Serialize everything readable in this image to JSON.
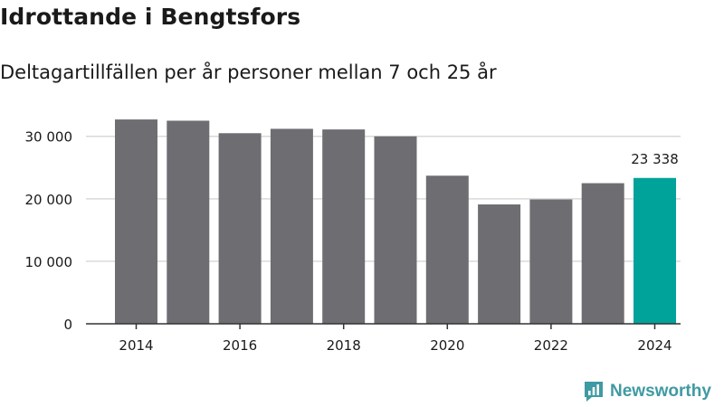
{
  "header": {
    "title": "Idrottande i Bengtsfors",
    "subtitle": "Deltagartillfällen per år personer mellan 7 och 25 år"
  },
  "brand": {
    "name": "Newsworthy",
    "icon": "newsworthy-logo-icon"
  },
  "colors": {
    "bar": "#6e6d72",
    "highlight": "#00a39a",
    "grid": "#d9d9d9",
    "axis": "#333333",
    "text": "#1a1a1a",
    "brand": "#3f9aa3"
  },
  "chart_data": {
    "type": "bar",
    "title": "Idrottande i Bengtsfors",
    "subtitle": "Deltagartillfällen per år personer mellan 7 och 25 år",
    "xlabel": "",
    "ylabel": "",
    "categories": [
      "2014",
      "2015",
      "2016",
      "2017",
      "2018",
      "2019",
      "2020",
      "2021",
      "2022",
      "2023",
      "2024"
    ],
    "values": [
      32700,
      32500,
      30500,
      31200,
      31100,
      30000,
      23700,
      19100,
      19900,
      22500,
      23338
    ],
    "highlight_index": 10,
    "highlight_label": "23 338",
    "ylim": [
      0,
      33000
    ],
    "yticks": [
      0,
      10000,
      20000,
      30000
    ],
    "ytick_labels": [
      "0",
      "10 000",
      "20 000",
      "30 000"
    ],
    "xtick_labels": [
      "2014",
      "",
      "2016",
      "",
      "2018",
      "",
      "2020",
      "",
      "2022",
      "",
      "2024"
    ],
    "grid": true
  }
}
